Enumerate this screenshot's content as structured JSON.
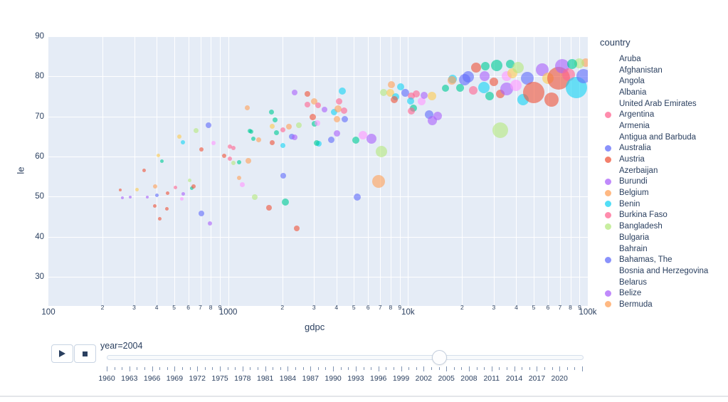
{
  "slider": {
    "year_label": "year=2004",
    "year": 2004,
    "min_year": 1960,
    "max_year": 2023,
    "label_step": 3,
    "last_label": 2020
  },
  "chart_data": {
    "type": "scatter",
    "title": "",
    "xlabel": "gdpc",
    "ylabel": "le",
    "x_axis": {
      "scale": "log",
      "range": [
        100,
        100000
      ],
      "decades": [
        100,
        1000,
        10000,
        100000
      ],
      "decade_labels": [
        "100",
        "1000",
        "10k",
        "100k"
      ],
      "minor_digits": [
        2,
        3,
        4,
        5,
        6,
        7,
        8,
        9
      ]
    },
    "y_axis": {
      "range": [
        22.7,
        90
      ],
      "ticks": [
        30,
        40,
        50,
        60,
        70,
        80,
        90
      ]
    },
    "grid": true,
    "plot_bg": "#E5ECF6",
    "palette": [
      "#636EFA",
      "#EF553B",
      "#00CC96",
      "#AB63FA",
      "#FFA15A",
      "#19D3F3",
      "#FF6692",
      "#B6E880",
      "#FF97FF",
      "#FECB52"
    ],
    "marker_opacity": 0.62,
    "points": [
      {
        "g": 250,
        "l": 51.6,
        "s": 2,
        "c": 1
      },
      {
        "g": 257,
        "l": 49.7,
        "s": 2,
        "c": 3
      },
      {
        "g": 285,
        "l": 49.9,
        "s": 2,
        "c": 3
      },
      {
        "g": 312,
        "l": 51.8,
        "s": 2.5,
        "c": 9
      },
      {
        "g": 355,
        "l": 49.9,
        "s": 2,
        "c": 3
      },
      {
        "g": 340,
        "l": 56.6,
        "s": 2.5,
        "c": 1
      },
      {
        "g": 392,
        "l": 52.5,
        "s": 3,
        "c": 4
      },
      {
        "g": 400,
        "l": 50.4,
        "s": 2.5,
        "c": 0
      },
      {
        "g": 407,
        "l": 60.2,
        "s": 2.5,
        "c": 9
      },
      {
        "g": 426,
        "l": 58.8,
        "s": 2.5,
        "c": 2
      },
      {
        "g": 462,
        "l": 50.8,
        "s": 2.5,
        "c": 1
      },
      {
        "g": 392,
        "l": 47.7,
        "s": 2.5,
        "c": 1
      },
      {
        "g": 457,
        "l": 47,
        "s": 2.5,
        "c": 1
      },
      {
        "g": 415,
        "l": 44.5,
        "s": 2.5,
        "c": 1
      },
      {
        "g": 511,
        "l": 52.2,
        "s": 2.5,
        "c": 6
      },
      {
        "g": 553,
        "l": 49.5,
        "s": 2.5,
        "c": 8
      },
      {
        "g": 563,
        "l": 50.6,
        "s": 2.5,
        "c": 3
      },
      {
        "g": 613,
        "l": 54,
        "s": 2.5,
        "c": 7
      },
      {
        "g": 629,
        "l": 52,
        "s": 2.5,
        "c": 2
      },
      {
        "g": 641,
        "l": 52.5,
        "s": 3,
        "c": 1
      },
      {
        "g": 709,
        "l": 45.8,
        "s": 4,
        "c": 0
      },
      {
        "g": 791,
        "l": 43.3,
        "s": 3,
        "c": 3
      },
      {
        "g": 2400,
        "l": 42.1,
        "s": 4,
        "c": 1
      },
      {
        "g": 536,
        "l": 65,
        "s": 3,
        "c": 9
      },
      {
        "g": 560,
        "l": 63.5,
        "s": 3,
        "c": 5
      },
      {
        "g": 665,
        "l": 66.4,
        "s": 3.5,
        "c": 7
      },
      {
        "g": 777,
        "l": 67.8,
        "s": 4,
        "c": 0
      },
      {
        "g": 709,
        "l": 61.8,
        "s": 3,
        "c": 1
      },
      {
        "g": 828,
        "l": 63.4,
        "s": 3,
        "c": 8
      },
      {
        "g": 949,
        "l": 60.2,
        "s": 3,
        "c": 1
      },
      {
        "g": 1022,
        "l": 62.5,
        "s": 3,
        "c": 6
      },
      {
        "g": 1069,
        "l": 62.1,
        "s": 3,
        "c": 6
      },
      {
        "g": 1022,
        "l": 59.5,
        "s": 3,
        "c": 6
      },
      {
        "g": 1069,
        "l": 58.4,
        "s": 3,
        "c": 7
      },
      {
        "g": 1149,
        "l": 58.6,
        "s": 3,
        "c": 2
      },
      {
        "g": 1290,
        "l": 58.9,
        "s": 4,
        "c": 4
      },
      {
        "g": 1196,
        "l": 52.9,
        "s": 3.5,
        "c": 8
      },
      {
        "g": 1282,
        "l": 72.1,
        "s": 3.5,
        "c": 4
      },
      {
        "g": 1404,
        "l": 49.9,
        "s": 4,
        "c": 7
      },
      {
        "g": 1679,
        "l": 47.2,
        "s": 4,
        "c": 1
      },
      {
        "g": 2082,
        "l": 48.6,
        "s": 5,
        "c": 2
      },
      {
        "g": 1149,
        "l": 54.7,
        "s": 3,
        "c": 4
      },
      {
        "g": 1316,
        "l": 66.4,
        "s": 3,
        "c": 2
      },
      {
        "g": 1380,
        "l": 64.4,
        "s": 3,
        "c": 2
      },
      {
        "g": 1345,
        "l": 66.2,
        "s": 3,
        "c": 2
      },
      {
        "g": 1736,
        "l": 71,
        "s": 3.5,
        "c": 2
      },
      {
        "g": 1817,
        "l": 69.2,
        "s": 3.5,
        "c": 2
      },
      {
        "g": 1762,
        "l": 67.6,
        "s": 3.5,
        "c": 9
      },
      {
        "g": 1862,
        "l": 66,
        "s": 3.5,
        "c": 2
      },
      {
        "g": 2023,
        "l": 66.7,
        "s": 3.5,
        "c": 6
      },
      {
        "g": 2173,
        "l": 67.5,
        "s": 4,
        "c": 4
      },
      {
        "g": 2472,
        "l": 67.8,
        "s": 4,
        "c": 7
      },
      {
        "g": 1483,
        "l": 64.1,
        "s": 3.5,
        "c": 4
      },
      {
        "g": 1749,
        "l": 63.5,
        "s": 3.5,
        "c": 1
      },
      {
        "g": 2023,
        "l": 62.8,
        "s": 3.5,
        "c": 5
      },
      {
        "g": 2251,
        "l": 65,
        "s": 4,
        "c": 0
      },
      {
        "g": 2340,
        "l": 64.8,
        "s": 4,
        "c": 3
      },
      {
        "g": 2023,
        "l": 55.2,
        "s": 4,
        "c": 0
      },
      {
        "g": 2340,
        "l": 76,
        "s": 4,
        "c": 3
      },
      {
        "g": 2754,
        "l": 75.6,
        "s": 4,
        "c": 1
      },
      {
        "g": 2998,
        "l": 73.8,
        "s": 4.5,
        "c": 4
      },
      {
        "g": 3162,
        "l": 72.8,
        "s": 4,
        "c": 6
      },
      {
        "g": 2754,
        "l": 72.9,
        "s": 4,
        "c": 6
      },
      {
        "g": 2965,
        "l": 69.8,
        "s": 4.5,
        "c": 1
      },
      {
        "g": 3030,
        "l": 68.2,
        "s": 4,
        "c": 2
      },
      {
        "g": 3133,
        "l": 68.3,
        "s": 4,
        "c": 8
      },
      {
        "g": 3192,
        "l": 63.2,
        "s": 4,
        "c": 5
      },
      {
        "g": 3100,
        "l": 63.4,
        "s": 4,
        "c": 2
      },
      {
        "g": 3428,
        "l": 71.7,
        "s": 4,
        "c": 3
      },
      {
        "g": 3758,
        "l": 64.1,
        "s": 4.5,
        "c": 0
      },
      {
        "g": 3890,
        "l": 71,
        "s": 4.5,
        "c": 5
      },
      {
        "g": 4009,
        "l": 69.4,
        "s": 4.5,
        "c": 4
      },
      {
        "g": 4009,
        "l": 65.7,
        "s": 4.5,
        "c": 3
      },
      {
        "g": 4072,
        "l": 71.9,
        "s": 5,
        "c": 4
      },
      {
        "g": 4135,
        "l": 73.7,
        "s": 4.5,
        "c": 6
      },
      {
        "g": 4305,
        "l": 76.3,
        "s": 5,
        "c": 5
      },
      {
        "g": 4407,
        "l": 71.5,
        "s": 4.5,
        "c": 6
      },
      {
        "g": 4467,
        "l": 69.4,
        "s": 4.5,
        "c": 0
      },
      {
        "g": 5105,
        "l": 64.1,
        "s": 5,
        "c": 2
      },
      {
        "g": 5211,
        "l": 49.9,
        "s": 5,
        "c": 0
      },
      {
        "g": 5610,
        "l": 65.3,
        "s": 6,
        "c": 8
      },
      {
        "g": 6238,
        "l": 64.4,
        "s": 7,
        "c": 3
      },
      {
        "g": 6855,
        "l": 53.8,
        "s": 9,
        "c": 4
      },
      {
        "g": 7112,
        "l": 61.2,
        "s": 8,
        "c": 7
      },
      {
        "g": 7330,
        "l": 75.9,
        "s": 5,
        "c": 7
      },
      {
        "g": 7940,
        "l": 75.9,
        "s": 5.5,
        "c": 9
      },
      {
        "g": 8510,
        "l": 74.9,
        "s": 5,
        "c": 5
      },
      {
        "g": 8360,
        "l": 74.2,
        "s": 5,
        "c": 1
      },
      {
        "g": 8072,
        "l": 77.9,
        "s": 5,
        "c": 4
      },
      {
        "g": 9099,
        "l": 77.4,
        "s": 5,
        "c": 5
      },
      {
        "g": 9685,
        "l": 75.8,
        "s": 5.5,
        "c": 0
      },
      {
        "g": 11170,
        "l": 75.6,
        "s": 5,
        "c": 6
      },
      {
        "g": 10460,
        "l": 75.1,
        "s": 5,
        "c": 6
      },
      {
        "g": 10310,
        "l": 73.8,
        "s": 5,
        "c": 5
      },
      {
        "g": 11920,
        "l": 73.8,
        "s": 5.5,
        "c": 8
      },
      {
        "g": 12280,
        "l": 75.3,
        "s": 5,
        "c": 3
      },
      {
        "g": 10760,
        "l": 72,
        "s": 5,
        "c": 2
      },
      {
        "g": 10460,
        "l": 71.3,
        "s": 5,
        "c": 6
      },
      {
        "g": 13100,
        "l": 70.4,
        "s": 6,
        "c": 0
      },
      {
        "g": 13680,
        "l": 69,
        "s": 6.5,
        "c": 3
      },
      {
        "g": 14560,
        "l": 70.2,
        "s": 6,
        "c": 3
      },
      {
        "g": 13580,
        "l": 75.1,
        "s": 6,
        "c": 9
      },
      {
        "g": 16200,
        "l": 77,
        "s": 5,
        "c": 2
      },
      {
        "g": 17780,
        "l": 79.3,
        "s": 6,
        "c": 5
      },
      {
        "g": 20650,
        "l": 79.2,
        "s": 8,
        "c": 0
      },
      {
        "g": 17523,
        "l": 79,
        "s": 6,
        "c": 4
      },
      {
        "g": 19550,
        "l": 77.2,
        "s": 5.5,
        "c": 2
      },
      {
        "g": 21627,
        "l": 79.9,
        "s": 8,
        "c": 0
      },
      {
        "g": 23014,
        "l": 76.5,
        "s": 6,
        "c": 6
      },
      {
        "g": 24000,
        "l": 82.2,
        "s": 7,
        "c": 1
      },
      {
        "g": 26850,
        "l": 82.5,
        "s": 6,
        "c": 2
      },
      {
        "g": 31117,
        "l": 82.7,
        "s": 8,
        "c": 2
      },
      {
        "g": 26587,
        "l": 80.1,
        "s": 7,
        "c": 3
      },
      {
        "g": 26400,
        "l": 77.2,
        "s": 8,
        "c": 5
      },
      {
        "g": 28392,
        "l": 75.1,
        "s": 6,
        "c": 2
      },
      {
        "g": 30000,
        "l": 78.6,
        "s": 6,
        "c": 1
      },
      {
        "g": 32580,
        "l": 75.6,
        "s": 6,
        "c": 1
      },
      {
        "g": 32580,
        "l": 66.6,
        "s": 11,
        "c": 7
      },
      {
        "g": 35318,
        "l": 80.1,
        "s": 7,
        "c": 8
      },
      {
        "g": 36983,
        "l": 83.1,
        "s": 6,
        "c": 2
      },
      {
        "g": 35318,
        "l": 76.9,
        "s": 9,
        "c": 3
      },
      {
        "g": 39811,
        "l": 77.7,
        "s": 8,
        "c": 8
      },
      {
        "g": 38000,
        "l": 80.8,
        "s": 7,
        "c": 9
      },
      {
        "g": 41000,
        "l": 82.2,
        "s": 8,
        "c": 7
      },
      {
        "g": 43566,
        "l": 74.2,
        "s": 8,
        "c": 5
      },
      {
        "g": 46000,
        "l": 79.5,
        "s": 9,
        "c": 0
      },
      {
        "g": 50000,
        "l": 76,
        "s": 15,
        "c": 1
      },
      {
        "g": 55600,
        "l": 81.7,
        "s": 9,
        "c": 3
      },
      {
        "g": 60000,
        "l": 79.5,
        "s": 8,
        "c": 9
      },
      {
        "g": 62790,
        "l": 74.2,
        "s": 10,
        "c": 1
      },
      {
        "g": 68706,
        "l": 79.5,
        "s": 16,
        "c": 1
      },
      {
        "g": 72000,
        "l": 82.5,
        "s": 10,
        "c": 3
      },
      {
        "g": 78000,
        "l": 80.4,
        "s": 9,
        "c": 6
      },
      {
        "g": 86500,
        "l": 77.2,
        "s": 15,
        "c": 5
      },
      {
        "g": 94600,
        "l": 80,
        "s": 10,
        "c": 0
      },
      {
        "g": 97000,
        "l": 83.5,
        "s": 6,
        "c": 4
      },
      {
        "g": 90000,
        "l": 83.3,
        "s": 7,
        "c": 7
      },
      {
        "g": 82000,
        "l": 83,
        "s": 7,
        "c": 2
      }
    ],
    "legend": {
      "title": "country",
      "items": [
        {
          "label": "Aruba",
          "color": null
        },
        {
          "label": "Afghanistan",
          "color": null
        },
        {
          "label": "Angola",
          "color": null
        },
        {
          "label": "Albania",
          "color": null
        },
        {
          "label": "United Arab Emirates",
          "color": null
        },
        {
          "label": "Argentina",
          "color": "#FF6692"
        },
        {
          "label": "Armenia",
          "color": null
        },
        {
          "label": "Antigua and Barbuda",
          "color": null
        },
        {
          "label": "Australia",
          "color": "#636EFA"
        },
        {
          "label": "Austria",
          "color": "#EF553B"
        },
        {
          "label": "Azerbaijan",
          "color": null
        },
        {
          "label": "Burundi",
          "color": "#AB63FA"
        },
        {
          "label": "Belgium",
          "color": "#FFA15A"
        },
        {
          "label": "Benin",
          "color": "#19D3F3"
        },
        {
          "label": "Burkina Faso",
          "color": "#FF6692"
        },
        {
          "label": "Bangladesh",
          "color": "#B6E880"
        },
        {
          "label": "Bulgaria",
          "color": null
        },
        {
          "label": "Bahrain",
          "color": null
        },
        {
          "label": "Bahamas, The",
          "color": "#636EFA"
        },
        {
          "label": "Bosnia and Herzegovina",
          "color": null
        },
        {
          "label": "Belarus",
          "color": null
        },
        {
          "label": "Belize",
          "color": "#AB63FA"
        },
        {
          "label": "Bermuda",
          "color": "#FFA15A"
        }
      ]
    }
  }
}
